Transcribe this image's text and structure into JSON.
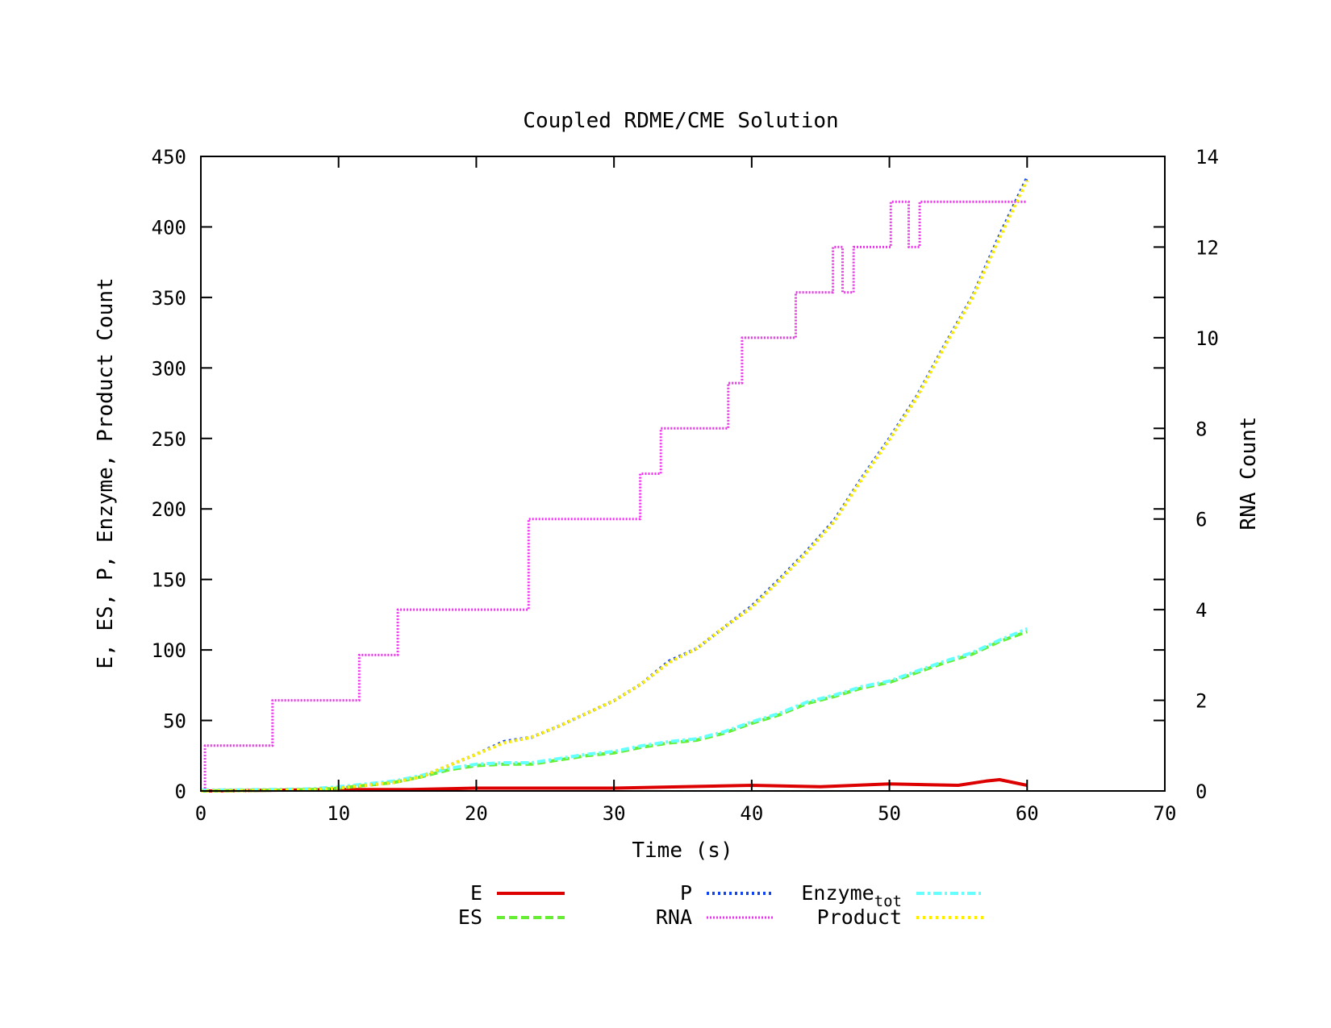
{
  "chart_data": {
    "type": "line",
    "title": "Coupled RDME/CME Solution",
    "xlabel": "Time (s)",
    "ylabel": "E, ES, P, Enzyme, Product Count",
    "y2label": "RNA Count",
    "xlim": [
      0,
      70
    ],
    "ylim": [
      0,
      450
    ],
    "y2lim": [
      0,
      14
    ],
    "xticks": [
      "0",
      "10",
      "20",
      "30",
      "40",
      "50",
      "60",
      "70"
    ],
    "yticks": [
      "0",
      "50",
      "100",
      "150",
      "200",
      "250",
      "300",
      "350",
      "400",
      "450"
    ],
    "y2ticks": [
      "0",
      "2",
      "4",
      "6",
      "8",
      "10",
      "12",
      "14"
    ],
    "grid": false,
    "legend_position": "bottom",
    "series": [
      {
        "name": "E",
        "color": "#dd0000",
        "dash": "solid",
        "axis": "y1",
        "step": false,
        "x": [
          0,
          5,
          10,
          15,
          20,
          25,
          30,
          35,
          40,
          45,
          50,
          55,
          57,
          58,
          59,
          60
        ],
        "y": [
          0,
          0.5,
          1,
          1,
          2,
          2,
          2,
          3,
          4,
          3,
          5,
          4,
          7,
          8,
          6,
          4
        ]
      },
      {
        "name": "ES",
        "color": "#66ee33",
        "dash": "dashed",
        "axis": "y1",
        "step": false,
        "x": [
          0,
          5,
          8,
          10,
          12,
          14,
          16,
          18,
          20,
          22,
          24,
          26,
          28,
          30,
          32,
          34,
          36,
          38,
          40,
          42,
          44,
          46,
          48,
          50,
          52,
          54,
          56,
          58,
          60
        ],
        "y": [
          0,
          0.5,
          1,
          2,
          4,
          6,
          10,
          15,
          18,
          19,
          19,
          22,
          25,
          27,
          31,
          34,
          36,
          41,
          48,
          54,
          62,
          67,
          73,
          77,
          84,
          91,
          97,
          106,
          113
        ]
      },
      {
        "name": "P",
        "color": "#1144ee",
        "dash": "dotted",
        "axis": "y1",
        "step": false,
        "x": [
          0,
          5,
          8,
          10,
          12,
          14,
          16,
          18,
          20,
          22,
          24,
          26,
          28,
          30,
          32,
          34,
          36,
          38,
          40,
          42,
          44,
          46,
          48,
          50,
          52,
          54,
          56,
          58,
          60
        ],
        "y": [
          0,
          0.5,
          1,
          2,
          4,
          6,
          10,
          18,
          26,
          35,
          38,
          46,
          55,
          64,
          76,
          92,
          101,
          116,
          131,
          150,
          170,
          192,
          222,
          250,
          280,
          316,
          350,
          394,
          435
        ]
      },
      {
        "name": "RNA",
        "color": "#ee33ee",
        "dash": "dotted",
        "axis": "y2",
        "step": true,
        "x": [
          0,
          0.3,
          5.2,
          11.5,
          14.3,
          23.8,
          31.9,
          33.4,
          38.3,
          39.3,
          43.2,
          45.9,
          46.6,
          47.4,
          50.1,
          51.4,
          52.2,
          60
        ],
        "y": [
          0,
          1,
          2,
          3,
          4,
          6,
          7,
          8,
          9,
          10,
          11,
          12,
          11,
          12,
          13,
          12,
          13,
          13
        ]
      },
      {
        "name": "Enzyme",
        "name_sub": "tot",
        "color": "#66ffff",
        "dash": "dash-dot",
        "axis": "y1",
        "step": false,
        "x": [
          0,
          5,
          8,
          10,
          12,
          14,
          16,
          18,
          20,
          22,
          24,
          26,
          28,
          30,
          32,
          34,
          36,
          38,
          40,
          42,
          44,
          46,
          48,
          50,
          52,
          54,
          56,
          58,
          60
        ],
        "y": [
          0.5,
          1,
          1.5,
          3,
          5,
          7,
          11,
          16,
          19,
          20,
          20,
          23,
          26,
          28,
          32,
          35,
          37,
          42,
          49,
          55,
          63,
          68,
          74,
          78,
          85,
          92,
          98,
          107,
          115
        ]
      },
      {
        "name": "Product",
        "color": "#ffee00",
        "dash": "dotted",
        "axis": "y1",
        "step": false,
        "x": [
          0,
          5,
          8,
          10,
          12,
          14,
          16,
          18,
          20,
          22,
          24,
          26,
          28,
          30,
          32,
          34,
          36,
          38,
          40,
          42,
          44,
          46,
          48,
          50,
          52,
          54,
          56,
          58,
          60
        ],
        "y": [
          0,
          0.5,
          1,
          2,
          4,
          6,
          10,
          18,
          26,
          34,
          38,
          46,
          55,
          64,
          76,
          91,
          101,
          116,
          130,
          149,
          169,
          191,
          221,
          249,
          279,
          315,
          349,
          392,
          433
        ]
      }
    ]
  }
}
